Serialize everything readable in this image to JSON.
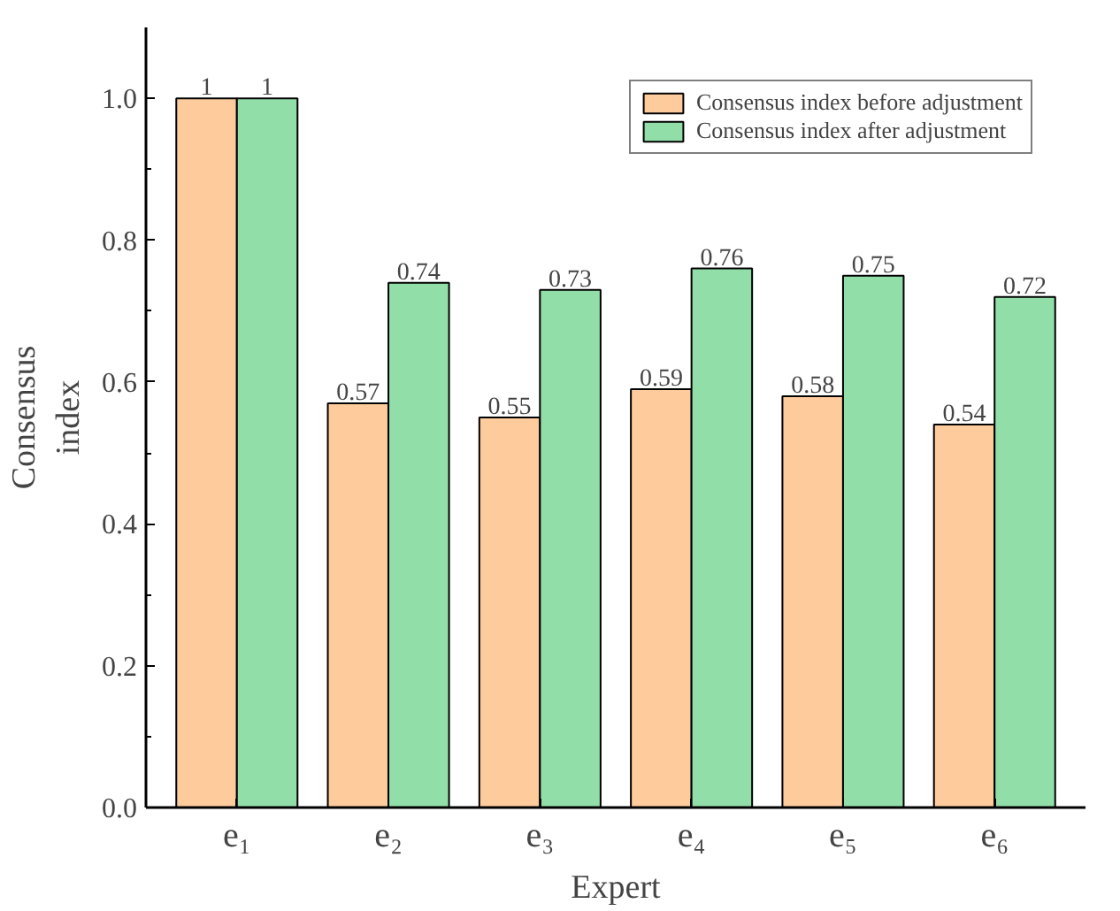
{
  "chart_data": {
    "type": "bar",
    "xlabel": "Expert",
    "ylabel": "Consensus index",
    "categories": [
      "e₁",
      "e₂",
      "e₃",
      "e₄",
      "e₅",
      "e₆"
    ],
    "series": [
      {
        "name": "Consensus index before adjustment",
        "color": "#fdcb9c",
        "values": [
          1,
          0.57,
          0.55,
          0.59,
          0.58,
          0.54
        ]
      },
      {
        "name": "Consensus index after adjustment",
        "color": "#92dea8",
        "values": [
          1,
          0.74,
          0.73,
          0.76,
          0.75,
          0.72
        ]
      }
    ],
    "ylim": [
      0,
      1.1
    ],
    "yticks": [
      {
        "value": 0,
        "label": "0.0"
      },
      {
        "value": 0.2,
        "label": "0.2"
      },
      {
        "value": 0.4,
        "label": "0.4"
      },
      {
        "value": 0.6,
        "label": "0.6"
      },
      {
        "value": 0.8,
        "label": "0.8"
      },
      {
        "value": 1.0,
        "label": "1.0"
      }
    ],
    "data_labels": true,
    "legend": "top right",
    "grid": false
  }
}
